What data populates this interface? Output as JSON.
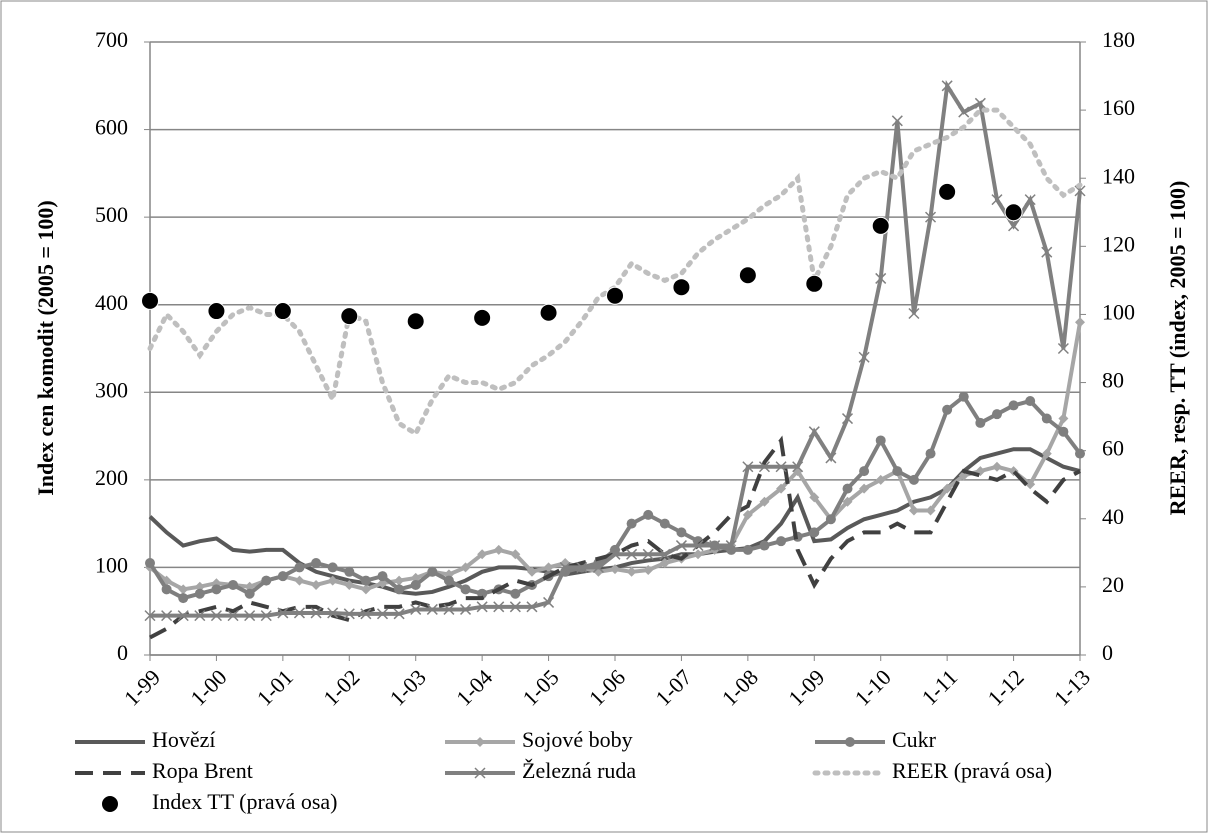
{
  "chart_data": {
    "type": "line",
    "ylabel": "Index cen komodit (2005 = 100)",
    "y2label": "REER, resp. TT (index, 2005 = 100)",
    "categories": [
      "1-99",
      null,
      null,
      null,
      "1-00",
      null,
      null,
      null,
      "1-01",
      null,
      null,
      null,
      "1-02",
      null,
      null,
      null,
      "1-03",
      null,
      null,
      null,
      "1-04",
      null,
      null,
      null,
      "1-05",
      null,
      null,
      null,
      "1-06",
      null,
      null,
      null,
      "1-07",
      null,
      null,
      null,
      "1-08",
      null,
      null,
      null,
      "1-09",
      null,
      null,
      null,
      "1-10",
      null,
      null,
      null,
      "1-11",
      null,
      null,
      null,
      "1-12",
      null,
      null,
      null,
      "1-13"
    ],
    "ylim": [
      0,
      700
    ],
    "yticks": [
      0,
      100,
      200,
      300,
      400,
      500,
      600,
      700
    ],
    "y2lim": [
      0,
      180
    ],
    "y2ticks": [
      0,
      20,
      40,
      60,
      80,
      100,
      120,
      140,
      160,
      180
    ],
    "grid": true,
    "series": [
      {
        "name": "Hovězí",
        "color": "#595959",
        "dash": "solid",
        "marker": "none",
        "values": [
          158,
          140,
          125,
          130,
          133,
          120,
          118,
          120,
          120,
          105,
          95,
          90,
          85,
          82,
          78,
          72,
          70,
          72,
          78,
          85,
          95,
          100,
          100,
          98,
          95,
          92,
          95,
          98,
          100,
          105,
          108,
          110,
          115,
          115,
          118,
          120,
          122,
          130,
          150,
          180,
          130,
          132,
          145,
          155,
          160,
          165,
          175,
          180,
          190,
          210,
          225,
          230,
          235,
          235,
          225,
          215,
          210
        ]
      },
      {
        "name": "Sojové boby",
        "color": "#a6a6a6",
        "dash": "solid",
        "marker": "diamond",
        "values": [
          100,
          85,
          75,
          78,
          82,
          80,
          78,
          85,
          90,
          85,
          80,
          85,
          80,
          75,
          82,
          85,
          88,
          95,
          92,
          100,
          115,
          120,
          115,
          95,
          100,
          105,
          100,
          95,
          98,
          95,
          97,
          105,
          110,
          115,
          120,
          125,
          160,
          175,
          190,
          210,
          180,
          155,
          175,
          190,
          200,
          210,
          165,
          165,
          190,
          205,
          210,
          215,
          210,
          195,
          230,
          270,
          380
        ]
      },
      {
        "name": "Cukr",
        "color": "#7f7f7f",
        "dash": "solid",
        "marker": "circle",
        "values": [
          105,
          75,
          65,
          70,
          75,
          80,
          70,
          85,
          90,
          100,
          105,
          100,
          95,
          85,
          90,
          75,
          80,
          95,
          85,
          75,
          70,
          75,
          70,
          80,
          90,
          95,
          100,
          105,
          120,
          150,
          160,
          150,
          140,
          130,
          125,
          120,
          120,
          125,
          130,
          135,
          140,
          155,
          190,
          210,
          245,
          210,
          200,
          230,
          280,
          295,
          265,
          275,
          285,
          290,
          270,
          255,
          230
        ]
      },
      {
        "name": "Ropa Brent",
        "color": "#404040",
        "dash": "dashed",
        "marker": "none",
        "values": [
          20,
          30,
          45,
          50,
          55,
          50,
          60,
          55,
          50,
          55,
          55,
          45,
          40,
          50,
          55,
          55,
          60,
          55,
          58,
          65,
          65,
          75,
          85,
          80,
          90,
          100,
          105,
          110,
          115,
          125,
          130,
          115,
          110,
          125,
          140,
          160,
          170,
          220,
          245,
          120,
          80,
          110,
          130,
          140,
          140,
          150,
          140,
          140,
          175,
          210,
          205,
          200,
          210,
          190,
          175,
          200,
          210
        ]
      },
      {
        "name": "Železná ruda",
        "color": "#808080",
        "dash": "solid",
        "marker": "x",
        "values": [
          45,
          45,
          45,
          45,
          45,
          45,
          45,
          45,
          48,
          48,
          48,
          48,
          47,
          47,
          47,
          47,
          52,
          52,
          52,
          52,
          55,
          55,
          55,
          55,
          60,
          100,
          100,
          100,
          115,
          115,
          115,
          115,
          125,
          125,
          125,
          125,
          215,
          215,
          215,
          215,
          255,
          225,
          270,
          340,
          430,
          610,
          390,
          500,
          650,
          620,
          630,
          520,
          490,
          520,
          460,
          350,
          530
        ]
      },
      {
        "name": "REER (pravá osa)",
        "color": "#bfbfbf",
        "dash": "dotted",
        "marker": "none",
        "axis": "y2",
        "values": [
          90,
          100,
          95,
          88,
          95,
          100,
          102,
          100,
          100,
          95,
          85,
          75,
          100,
          98,
          80,
          68,
          65,
          75,
          82,
          80,
          80,
          78,
          80,
          85,
          88,
          92,
          98,
          105,
          108,
          115,
          112,
          110,
          112,
          118,
          122,
          125,
          128,
          132,
          135,
          140,
          110,
          120,
          135,
          140,
          142,
          140,
          148,
          150,
          152,
          155,
          160,
          160,
          155,
          150,
          140,
          135,
          138
        ]
      },
      {
        "name": "Index TT (pravá osa)",
        "color": "#000000",
        "dash": "none",
        "marker": "bigcircle",
        "axis": "y2",
        "values": [
          104,
          null,
          null,
          null,
          101,
          null,
          null,
          null,
          101,
          null,
          null,
          null,
          99.5,
          null,
          null,
          null,
          98,
          null,
          null,
          null,
          99,
          null,
          null,
          null,
          100.5,
          null,
          null,
          null,
          105.5,
          null,
          null,
          null,
          108,
          null,
          null,
          null,
          111.5,
          null,
          null,
          null,
          109,
          null,
          null,
          null,
          126,
          null,
          null,
          null,
          136,
          null,
          null,
          null,
          130,
          null,
          null,
          null,
          null
        ]
      }
    ]
  }
}
